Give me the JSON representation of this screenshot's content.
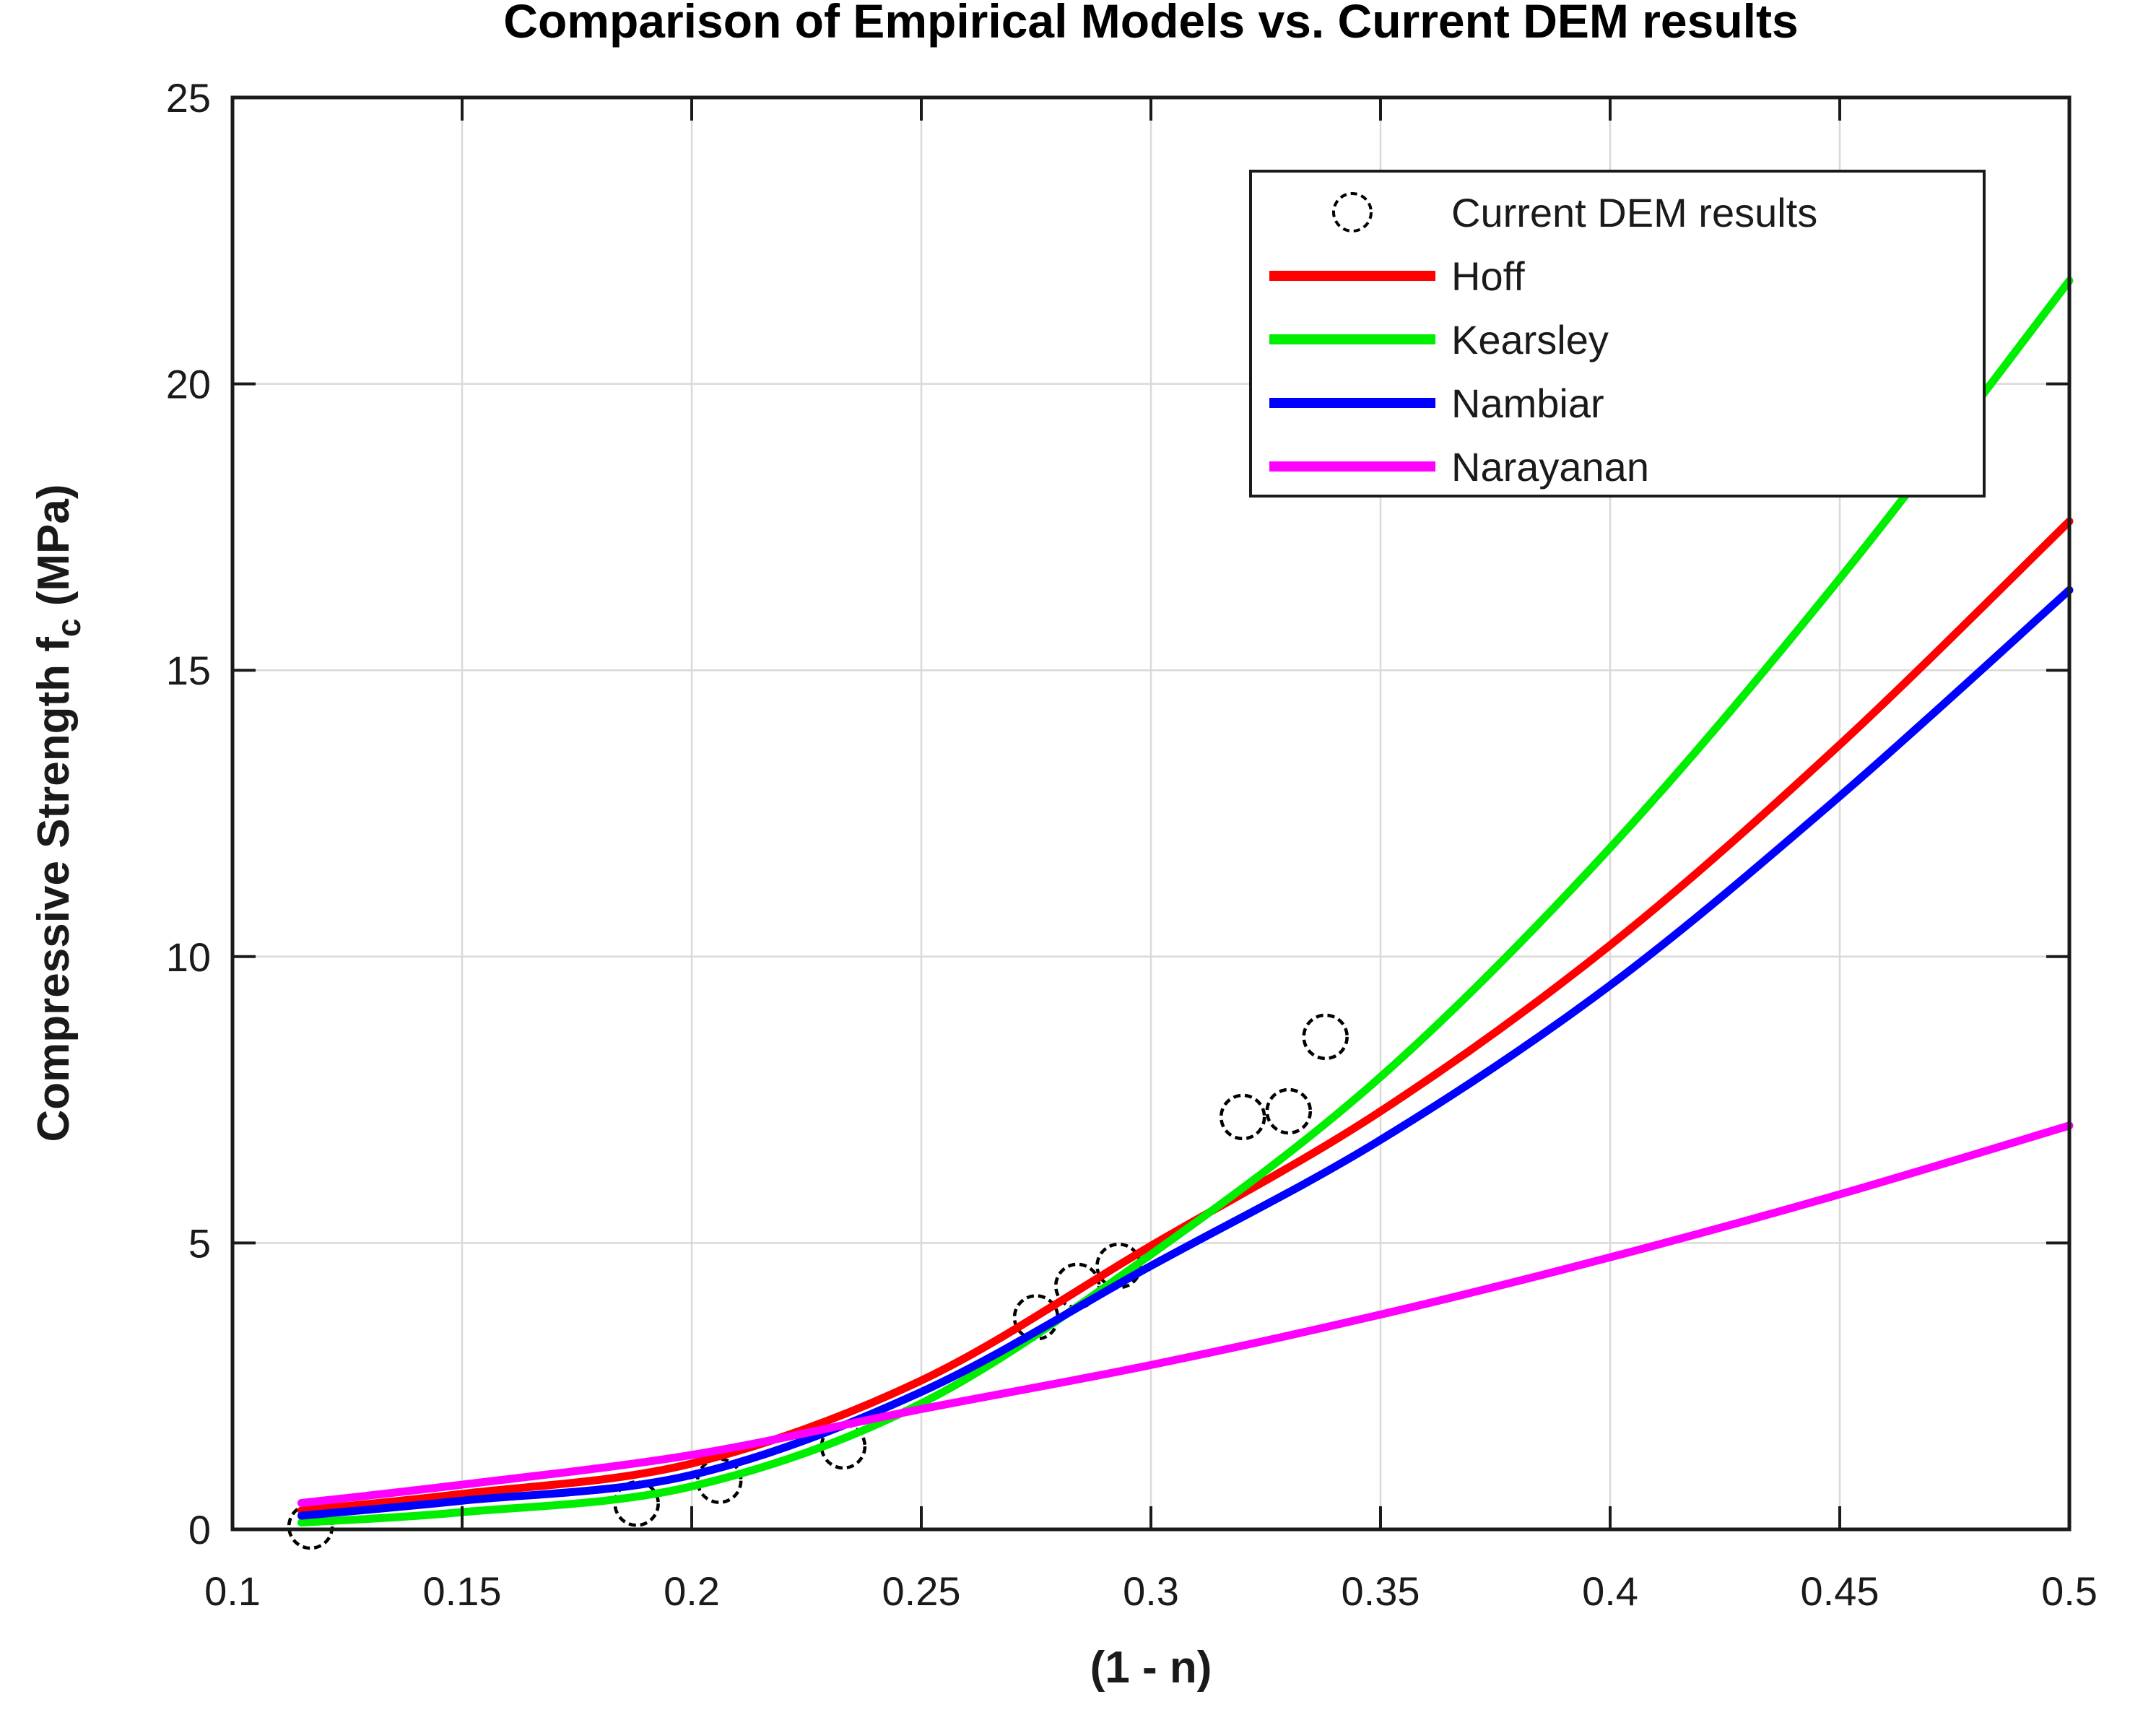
{
  "chart_data": {
    "type": "line+scatter",
    "title": "Comparison of Empirical Models vs. Current DEM results",
    "xlabel": "(1 - n)",
    "ylabel_main": "Compressive Strength f",
    "ylabel_sub": "c",
    "ylabel_unit": " (MPa)",
    "xlim": [
      0.1,
      0.5
    ],
    "ylim": [
      0,
      25
    ],
    "xticks": {
      "values": [
        0.1,
        0.15,
        0.2,
        0.25,
        0.3,
        0.35,
        0.4,
        0.45,
        0.5
      ],
      "labels": [
        "0.1",
        "0.15",
        "0.2",
        "0.25",
        "0.3",
        "0.35",
        "0.4",
        "0.45",
        "0.5"
      ]
    },
    "yticks": {
      "values": [
        0,
        5,
        10,
        15,
        20,
        25
      ],
      "labels": [
        "0",
        "5",
        "10",
        "15",
        "20",
        "25"
      ]
    },
    "grid": true,
    "colors": {
      "grid": "#d9d9d9",
      "axis": "#1a1a1a",
      "scatter": "#000000",
      "hoff": "#ff0000",
      "kearsley": "#00ee00",
      "nambiar": "#0000ff",
      "narayanan": "#ff00ff"
    },
    "scatter": {
      "name": "Current DEM results",
      "marker": "open-circle",
      "color": "#000000",
      "points": [
        [
          0.117,
          0.05
        ],
        [
          0.188,
          0.45
        ],
        [
          0.206,
          0.85
        ],
        [
          0.233,
          1.45
        ],
        [
          0.275,
          3.7
        ],
        [
          0.284,
          4.25
        ],
        [
          0.293,
          4.6
        ],
        [
          0.32,
          7.2
        ],
        [
          0.33,
          7.3
        ],
        [
          0.338,
          8.6
        ]
      ]
    },
    "series": [
      {
        "name": "Hoff",
        "color": "#ff0000",
        "points": [
          [
            0.115,
            0.33
          ],
          [
            0.15,
            0.62
          ],
          [
            0.2,
            1.15
          ],
          [
            0.25,
            2.6
          ],
          [
            0.3,
            4.95
          ],
          [
            0.35,
            7.3
          ],
          [
            0.4,
            10.2
          ],
          [
            0.45,
            13.7
          ],
          [
            0.5,
            17.6
          ]
        ]
      },
      {
        "name": "Kearsley",
        "color": "#00ee00",
        "points": [
          [
            0.115,
            0.12
          ],
          [
            0.15,
            0.3
          ],
          [
            0.2,
            0.75
          ],
          [
            0.25,
            2.2
          ],
          [
            0.3,
            4.8
          ],
          [
            0.35,
            7.9
          ],
          [
            0.4,
            11.9
          ],
          [
            0.45,
            16.6
          ],
          [
            0.5,
            21.8
          ]
        ]
      },
      {
        "name": "Nambiar",
        "color": "#0000ff",
        "points": [
          [
            0.115,
            0.24
          ],
          [
            0.15,
            0.5
          ],
          [
            0.2,
            0.95
          ],
          [
            0.25,
            2.4
          ],
          [
            0.3,
            4.6
          ],
          [
            0.35,
            6.8
          ],
          [
            0.4,
            9.5
          ],
          [
            0.45,
            12.8
          ],
          [
            0.5,
            16.4
          ]
        ]
      },
      {
        "name": "Narayanan",
        "color": "#ff00ff",
        "points": [
          [
            0.115,
            0.46
          ],
          [
            0.15,
            0.78
          ],
          [
            0.2,
            1.3
          ],
          [
            0.25,
            2.1
          ],
          [
            0.3,
            2.87
          ],
          [
            0.35,
            3.75
          ],
          [
            0.4,
            4.75
          ],
          [
            0.45,
            5.85
          ],
          [
            0.5,
            7.05
          ]
        ]
      }
    ],
    "legend": {
      "position": "northeast",
      "entries": [
        "Current DEM results",
        "Hoff",
        "Kearsley",
        "Nambiar",
        "Narayanan"
      ]
    }
  }
}
